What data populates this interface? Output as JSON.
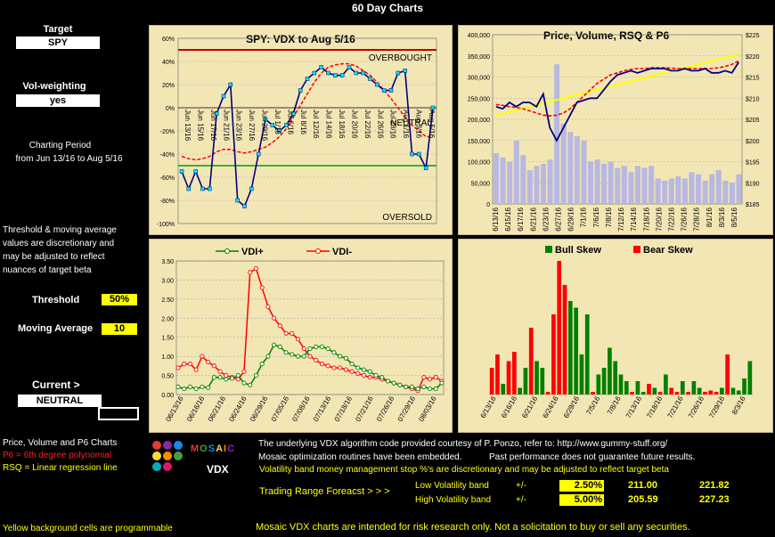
{
  "page_title": "60 Day Charts",
  "left": {
    "target_label": "Target",
    "target_value": "SPY",
    "vol_label": "Vol-weighting",
    "vol_value": "yes",
    "period_label": "Charting Period",
    "period_value": "from Jun 13/16 to Aug 5/16",
    "note": [
      "Threshold & moving average",
      "values are discretionary and",
      "may be adjusted to reflect",
      "nuances of target beta"
    ],
    "threshold_label": "Threshold",
    "threshold_value": "50%",
    "ma_label": "Moving Average",
    "ma_value": "10",
    "current_label": "Current >",
    "current_value": "NEUTRAL",
    "legend_title": "Price, Volume and P6 Charts",
    "legend_p6": "P6 = 6th degree polynomial",
    "legend_rsq": "RSQ = Linear regression line",
    "programmable_note": "Yellow background cells are programmable"
  },
  "logo": {
    "word": "MOSAIC",
    "sub": "VDX",
    "dot_colors": [
      "#e53935",
      "#8e24aa",
      "#1e88e5",
      "#fdd835",
      "#fb8c00",
      "#43a047",
      "#00acc1",
      "#d81b60"
    ]
  },
  "bottom": {
    "credit": "The underlying VDX algorithm code provided courtesy of P. Ponzo, refer to:  http://www.gummy-stuff.org/",
    "embedded": "Mosaic optimization routines have been embedded.",
    "past_perf": "Past performance does not guarantee future results.",
    "vol_note": "Volatility band money management stop %'s are discretionary and may be adjusted to reflect target beta",
    "forecast_label": "Trading Range Foreacst > > >",
    "low_label": "Low Volatility band",
    "low_pm": "+/-",
    "low_pct": "2.50%",
    "low_lo": "211.00",
    "low_hi": "221.82",
    "high_label": "High Volatility band",
    "high_pm": "+/-",
    "high_pct": "5.00%",
    "high_lo": "205.59",
    "high_hi": "227.23",
    "disclaimer": "Mosaic VDX charts are intended for risk research only.  Not a solicitation to buy or sell any securities."
  },
  "chart_data": [
    {
      "id": "vdx",
      "type": "line",
      "title": "SPY:    VDX to Aug 5/16",
      "annotations": [
        "OVERBOUGHT",
        "NEUTRAL",
        "OVERSOLD"
      ],
      "ylim": [
        -100,
        60
      ],
      "yticks": [
        "60%",
        "40%",
        "20%",
        "0%",
        "-20%",
        "-40%",
        "-60%",
        "-80%",
        "-100%"
      ],
      "overbought": 50,
      "oversold": -50,
      "colors": {
        "vdx": "#000080",
        "ma": "#ff0000",
        "overbought": "#c00000",
        "oversold": "#00a000"
      },
      "x_labels": [
        "Jun 13/16",
        "Jun 15/16",
        "Jun 17/16",
        "Jun 21/16",
        "Jun 23/16",
        "Jun 27/16",
        "Jun 29/16",
        "Jul 1/16",
        "Jul 6/16",
        "Jul 8/16",
        "Jul 12/16",
        "Jul 14/16",
        "Jul 18/16",
        "Jul 20/16",
        "Jul 22/16",
        "Jul 26/16",
        "Jul 28/16",
        "Aug 1/16",
        "Aug 3/16",
        "Aug 5/16"
      ],
      "series": [
        {
          "values": [
            -55,
            -70,
            -55,
            -70,
            -70,
            -5,
            10,
            20,
            -80,
            -85,
            -70,
            -40,
            -10,
            -15,
            -20,
            -15,
            -5,
            15,
            25,
            30,
            35,
            30,
            28,
            28,
            35,
            30,
            30,
            25,
            20,
            15,
            15,
            30,
            32,
            -40,
            -40,
            -52,
            0
          ]
        },
        {
          "values": [
            -42,
            -44,
            -45,
            -44,
            -42,
            -38,
            -36,
            -36,
            -38,
            -39,
            -38,
            -36,
            -34,
            -30,
            -25,
            -18,
            -8,
            2,
            12,
            22,
            30,
            35,
            37,
            38,
            38,
            36,
            32,
            28,
            22,
            15,
            8,
            0,
            -8,
            -15,
            -20,
            -25,
            -25
          ]
        }
      ]
    },
    {
      "id": "price",
      "type": "bar",
      "title": "Price,  Volume, RSQ & P6",
      "ylim_left": [
        0,
        400000
      ],
      "ylim_right": [
        185,
        225
      ],
      "yticks_left": [
        "400,000",
        "350,000",
        "300,000",
        "250,000",
        "200,000",
        "150,000",
        "100,000",
        "50,000",
        "0"
      ],
      "yticks_right": [
        "$225",
        "$220",
        "$215",
        "$210",
        "$205",
        "$200",
        "$195",
        "$190",
        "$185"
      ],
      "colors": {
        "volume": "#b8b8e0",
        "price": "#000080",
        "p6": "#ff0000",
        "rsq": "#ffff00"
      },
      "x_labels": [
        "6/13/16",
        "6/15/16",
        "6/17/16",
        "6/21/16",
        "6/23/16",
        "6/27/16",
        "6/29/16",
        "7/1/16",
        "7/6/16",
        "7/8/16",
        "7/12/16",
        "7/14/16",
        "7/18/16",
        "7/20/16",
        "7/22/16",
        "7/26/16",
        "7/28/16",
        "8/1/16",
        "8/3/16",
        "8/5/16"
      ],
      "volume": [
        120000,
        110000,
        100000,
        150000,
        115000,
        80000,
        90000,
        95000,
        105000,
        330000,
        190000,
        170000,
        160000,
        150000,
        100000,
        105000,
        95000,
        100000,
        85000,
        90000,
        75000,
        90000,
        85000,
        90000,
        60000,
        55000,
        60000,
        65000,
        60000,
        75000,
        70000,
        55000,
        70000,
        80000,
        55000,
        50000,
        70000
      ],
      "price": [
        208,
        207.5,
        209,
        208,
        209,
        209,
        208,
        211,
        203,
        200,
        203,
        206,
        209,
        209.5,
        210,
        210,
        212,
        214,
        215.5,
        216,
        216.5,
        216,
        216.5,
        217,
        217,
        217,
        216.5,
        216.5,
        217,
        216.5,
        216.5,
        217,
        216,
        216,
        216.5,
        216,
        218.5
      ],
      "p6": [
        208.5,
        208.3,
        208,
        207.8,
        207.5,
        207,
        206.5,
        206,
        205.8,
        206,
        206.5,
        207.5,
        209,
        210.5,
        212,
        213.5,
        214.5,
        215.5,
        216,
        216.5,
        216.8,
        217,
        217,
        217.2,
        217.2,
        217.2,
        217.1,
        217,
        217,
        217,
        217,
        217,
        217,
        217.2,
        217.5,
        218,
        218.8
      ],
      "rsq": [
        206,
        206.4,
        206.8,
        207.2,
        207.6,
        208,
        208.4,
        208.8,
        209.2,
        209.6,
        210,
        210.4,
        210.8,
        211.2,
        211.6,
        212,
        212.4,
        212.8,
        213.2,
        213.6,
        214,
        214.4,
        214.8,
        215.2,
        215.6,
        216,
        216.4,
        216.8,
        217.2,
        217.6,
        218,
        218.4,
        218.8,
        219.2,
        219.6,
        220,
        220.4
      ]
    },
    {
      "id": "vdi",
      "type": "line",
      "series_names": [
        "VDI+",
        "VDI-"
      ],
      "ylim": [
        0,
        3.5
      ],
      "yticks": [
        "3.50",
        "3.00",
        "2.50",
        "2.00",
        "1.50",
        "1.00",
        "0.50",
        "0.00"
      ],
      "colors": {
        "plus": "#008000",
        "minus": "#ff0000"
      },
      "x_labels": [
        "06/13/16",
        "06/16/16",
        "06/21/16",
        "06/24/16",
        "06/29/16",
        "07/05/16",
        "07/08/16",
        "07/13/16",
        "07/18/16",
        "07/21/16",
        "07/26/16",
        "07/29/16",
        "08/03/16"
      ],
      "plus": [
        0.2,
        0.15,
        0.2,
        0.15,
        0.2,
        0.18,
        0.45,
        0.45,
        0.4,
        0.42,
        0.5,
        0.3,
        0.25,
        0.5,
        0.8,
        1.0,
        1.3,
        1.25,
        1.1,
        1.05,
        1.0,
        1.0,
        1.2,
        1.25,
        1.25,
        1.2,
        1.1,
        1.0,
        0.95,
        0.8,
        0.7,
        0.65,
        0.6,
        0.5,
        0.45,
        0.35,
        0.3,
        0.25,
        0.2,
        0.2,
        0.15,
        0.2,
        0.15,
        0.15,
        0.3
      ],
      "minus": [
        0.7,
        0.8,
        0.8,
        0.65,
        1.0,
        0.85,
        0.75,
        0.6,
        0.5,
        0.45,
        0.4,
        0.6,
        3.2,
        3.3,
        2.8,
        2.3,
        2.0,
        1.8,
        1.6,
        1.6,
        1.45,
        1.2,
        1.0,
        0.9,
        0.8,
        0.75,
        0.7,
        0.7,
        0.65,
        0.6,
        0.55,
        0.5,
        0.45,
        0.45,
        0.4,
        0.35,
        0.3,
        0.25,
        0.2,
        0.15,
        0.1,
        0.45,
        0.4,
        0.45,
        0.35
      ]
    },
    {
      "id": "skew",
      "type": "bar",
      "series_names": [
        "Bull Skew",
        "Bear Skew"
      ],
      "colors": {
        "bull": "#008000",
        "bear": "#ff0000"
      },
      "x_labels": [
        "6/13/16",
        "6/16/16",
        "6/21/16",
        "6/24/16",
        "6/29/16",
        "7/5/16",
        "7/8/16",
        "7/13/16",
        "7/18/16",
        "7/21/16",
        "7/26/16",
        "7/29/16",
        "8/3/16"
      ],
      "bars": [
        [
          "bear",
          0.2
        ],
        [
          "bear",
          0.3
        ],
        [
          "bull",
          0.08
        ],
        [
          "bear",
          0.25
        ],
        [
          "bear",
          0.32
        ],
        [
          "bull",
          0.05
        ],
        [
          "bull",
          0.2
        ],
        [
          "bear",
          0.5
        ],
        [
          "bull",
          0.25
        ],
        [
          "bull",
          0.2
        ],
        [
          "bear",
          0.02
        ],
        [
          "bear",
          0.6
        ],
        [
          "bear",
          1.0
        ],
        [
          "bear",
          0.82
        ],
        [
          "bull",
          0.7
        ],
        [
          "bull",
          0.65
        ],
        [
          "bull",
          0.3
        ],
        [
          "bull",
          0.6
        ],
        [
          "bear",
          0.02
        ],
        [
          "bull",
          0.15
        ],
        [
          "bull",
          0.2
        ],
        [
          "bull",
          0.35
        ],
        [
          "bull",
          0.25
        ],
        [
          "bull",
          0.15
        ],
        [
          "bull",
          0.1
        ],
        [
          "bear",
          0.02
        ],
        [
          "bull",
          0.1
        ],
        [
          "bull",
          0.02
        ],
        [
          "bear",
          0.08
        ],
        [
          "bull",
          0.05
        ],
        [
          "bear",
          0.02
        ],
        [
          "bull",
          0.15
        ],
        [
          "bear",
          0.05
        ],
        [
          "bear",
          0.02
        ],
        [
          "bull",
          0.1
        ],
        [
          "bear",
          0.02
        ],
        [
          "bull",
          0.1
        ],
        [
          "bull",
          0.05
        ],
        [
          "bear",
          0.02
        ],
        [
          "bear",
          0.03
        ],
        [
          "bear",
          0.02
        ],
        [
          "bull",
          0.05
        ],
        [
          "bear",
          0.3
        ],
        [
          "bull",
          0.05
        ],
        [
          "bull",
          0.03
        ],
        [
          "bull",
          0.12
        ],
        [
          "bull",
          0.25
        ]
      ]
    }
  ]
}
